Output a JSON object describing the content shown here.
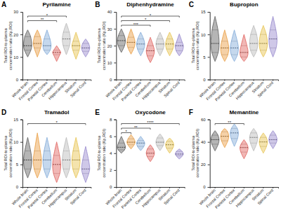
{
  "chart_data": [
    {
      "type": "violin",
      "label": "A",
      "title": "Pyrilamine",
      "ylabel": "Total ROI-to-plasma concentration ratio (Kp,ROI)",
      "categories": [
        "Whole brain",
        "Frontal Cortex",
        "Parietal Cortex",
        "Cerebellum",
        "Hippocampus",
        "Striatum",
        "Spinal Cord"
      ],
      "colors": [
        "#5a5a5a",
        "#e89a3c",
        "#7fa8d8",
        "#e0605a",
        "#b8b8b8",
        "#e6c24a",
        "#9486cc"
      ],
      "ylim": [
        0,
        30
      ],
      "yticks": [
        0,
        10,
        20,
        30
      ],
      "min": [
        10,
        10,
        11,
        8,
        11,
        9,
        10
      ],
      "q1": [
        13,
        14,
        13,
        11,
        15,
        13,
        12.5
      ],
      "median": [
        15,
        16,
        15,
        12,
        18,
        15,
        14
      ],
      "q3": [
        19,
        19,
        18,
        13,
        21,
        17,
        16
      ],
      "max": [
        22,
        22,
        22,
        15,
        25,
        21,
        18
      ],
      "annotations": [
        {
          "from": "Whole brain",
          "to": "Hippocampus",
          "label": "*"
        },
        {
          "from": "Whole brain",
          "to": "Cerebellum",
          "label": "**"
        }
      ]
    },
    {
      "type": "violin",
      "label": "B",
      "title": "Diphenhydramine",
      "ylabel": "Total ROI-to-plasma concentration ratio (Kp,ROI)",
      "categories": [
        "Whole brain",
        "Frontal Cortex",
        "Parietal Cortex",
        "Cerebellum",
        "Hippocampus",
        "Striatum",
        "Spinal Cord"
      ],
      "colors": [
        "#5a5a5a",
        "#e89a3c",
        "#7fa8d8",
        "#e0605a",
        "#b8b8b8",
        "#e6c24a",
        "#9486cc"
      ],
      "ylim": [
        0,
        40
      ],
      "yticks": [
        0,
        10,
        20,
        30,
        40
      ],
      "min": [
        16,
        15,
        14,
        10,
        14,
        14,
        14
      ],
      "q1": [
        20,
        19,
        18,
        14,
        18,
        18,
        17
      ],
      "median": [
        23,
        22,
        21,
        17,
        21,
        21,
        20
      ],
      "q3": [
        26,
        25,
        24,
        20,
        24,
        24,
        22
      ],
      "max": [
        30,
        30,
        28,
        25,
        28,
        28,
        27
      ],
      "annotations": [
        {
          "from": "Whole brain",
          "to": "Spinal Cord",
          "label": "*"
        },
        {
          "from": "Whole brain",
          "to": "Striatum",
          "label": "*"
        },
        {
          "from": "Whole brain",
          "to": "Cerebellum",
          "label": "***"
        }
      ]
    },
    {
      "type": "violin",
      "label": "C",
      "title": "Bupropion",
      "ylabel": "Total ROI-to-plasma concentration ratio (Kp,ROI)",
      "categories": [
        "Whole brain",
        "Frontal Cortex",
        "Parietal Cortex",
        "Cerebellum",
        "Hippocampus",
        "Striatum",
        "Spinal Cord"
      ],
      "colors": [
        "#5a5a5a",
        "#e89a3c",
        "#7fa8d8",
        "#e0605a",
        "#b8b8b8",
        "#e6c24a",
        "#9486cc"
      ],
      "ylim": [
        0,
        15
      ],
      "yticks": [
        0,
        5,
        10,
        15
      ],
      "min": [
        4,
        4,
        4,
        4,
        5,
        5,
        5
      ],
      "q1": [
        6,
        5.5,
        5.5,
        5,
        6.5,
        6.5,
        7
      ],
      "median": [
        8,
        7,
        7,
        6,
        8,
        8,
        9
      ],
      "q3": [
        11,
        8.5,
        8.5,
        7.5,
        10,
        10,
        11
      ],
      "max": [
        14,
        11,
        11,
        10,
        12,
        12,
        14
      ]
    },
    {
      "type": "violin",
      "label": "D",
      "title": "Tramadol",
      "ylabel": "Total ROI-to-plasma concentration ratio (Kp,ROI)",
      "categories": [
        "Whole brain",
        "Frontal Cortex",
        "Parietal Cortex",
        "Cerebellum",
        "Hippocampus",
        "Striatum",
        "Spinal Cord"
      ],
      "colors": [
        "#5a5a5a",
        "#e89a3c",
        "#7fa8d8",
        "#e0605a",
        "#b8b8b8",
        "#e6c24a",
        "#9486cc"
      ],
      "ylim": [
        0,
        15
      ],
      "yticks": [
        0,
        5,
        10,
        15
      ],
      "min": [
        2,
        2,
        2,
        1,
        2,
        2,
        1
      ],
      "q1": [
        4,
        4,
        4,
        3,
        4,
        4,
        3
      ],
      "median": [
        6,
        6,
        6,
        5,
        6,
        6,
        4
      ],
      "q3": [
        8,
        8,
        8,
        7,
        8,
        8,
        6
      ],
      "max": [
        11,
        12,
        11,
        10,
        11,
        11,
        9
      ],
      "annotations": [
        {
          "from": "Whole brain",
          "to": "Spinal Cord",
          "label": "*"
        }
      ]
    },
    {
      "type": "violin",
      "label": "E",
      "title": "Oxycodone",
      "ylabel": "Total ROI-to-plasma concentration ratio (Kp,ROI)",
      "categories": [
        "Whole brain",
        "Frontal Cortex",
        "Parietal Cortex",
        "Cerebellum",
        "Hippocampus",
        "Striatum",
        "Spinal Cord"
      ],
      "colors": [
        "#5a5a5a",
        "#e89a3c",
        "#7fa8d8",
        "#e0605a",
        "#b8b8b8",
        "#e6c24a",
        "#9486cc"
      ],
      "ylim": [
        0,
        8
      ],
      "yticks": [
        0,
        2,
        4,
        6,
        8
      ],
      "min": [
        4,
        4.5,
        4.3,
        3,
        4.3,
        4,
        3.3
      ],
      "q1": [
        4.4,
        5,
        4.8,
        3.6,
        4.9,
        4.6,
        3.7
      ],
      "median": [
        4.7,
        5.3,
        5.2,
        4,
        5.3,
        5,
        3.9
      ],
      "q3": [
        5.2,
        5.7,
        5.5,
        4.5,
        5.8,
        5.4,
        4.2
      ],
      "max": [
        6,
        6.2,
        6,
        5,
        6.3,
        5.8,
        4.5
      ],
      "annotations": [
        {
          "from": "Whole brain",
          "to": "Spinal Cord",
          "label": "****"
        },
        {
          "from": "Whole brain",
          "to": "Cerebellum",
          "label": "**"
        },
        {
          "from": "Whole brain",
          "to": "Frontal Cortex",
          "label": "*"
        }
      ]
    },
    {
      "type": "violin",
      "label": "F",
      "title": "Memantine",
      "ylabel": "Total ROI-to-plasma concentration ratio (Kp,ROI)",
      "categories": [
        "Whole brain",
        "Frontal Cortex",
        "Parietal Cortex",
        "Cerebellum",
        "Hippocampus",
        "Striatum",
        "Spinal Cord"
      ],
      "colors": [
        "#5a5a5a",
        "#e89a3c",
        "#7fa8d8",
        "#e0605a",
        "#b8b8b8",
        "#e6c24a",
        "#9486cc"
      ],
      "ylim": [
        0,
        60
      ],
      "yticks": [
        0,
        20,
        40,
        60
      ],
      "min": [
        32,
        35,
        36,
        25,
        32,
        30,
        34
      ],
      "q1": [
        38,
        41,
        43,
        31,
        39,
        36,
        39
      ],
      "median": [
        42,
        45,
        48,
        35,
        44,
        40,
        42
      ],
      "q3": [
        46,
        49,
        52,
        38,
        48,
        44,
        46
      ],
      "max": [
        50,
        52,
        56,
        42,
        52,
        48,
        50
      ],
      "annotations": [
        {
          "from": "Whole brain",
          "to": "Cerebellum",
          "label": "**"
        }
      ]
    }
  ]
}
